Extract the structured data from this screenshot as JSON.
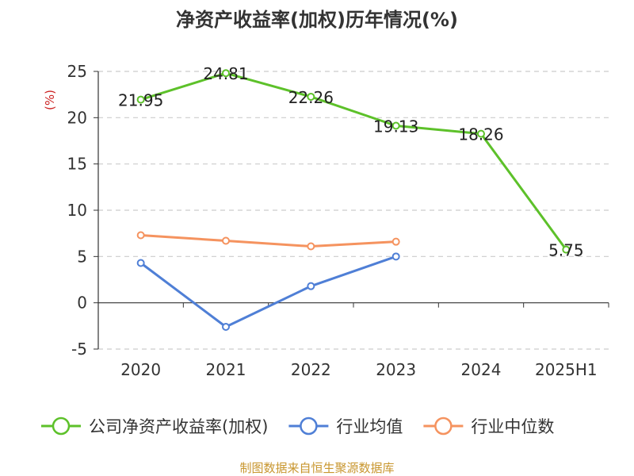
{
  "chart_data": {
    "type": "line",
    "title": "净资产收益率(加权)历年情况(%)",
    "ylabel": "(%)",
    "categories": [
      "2020",
      "2021",
      "2022",
      "2023",
      "2024",
      "2025H1"
    ],
    "ylim": [
      -5,
      25
    ],
    "yticks": [
      -5,
      0,
      5,
      10,
      15,
      20,
      25
    ],
    "grid": true,
    "legend_position": "bottom",
    "series": [
      {
        "name": "公司净资产收益率(加权)",
        "color": "#5dc12a",
        "values": [
          21.95,
          24.81,
          22.26,
          19.13,
          18.26,
          5.75
        ],
        "labels": [
          "21.95",
          "24.81",
          "22.26",
          "19.13",
          "18.26",
          "5.75"
        ]
      },
      {
        "name": "行业均值",
        "color": "#4f7fd6",
        "values": [
          4.3,
          -2.6,
          1.8,
          5.0,
          null,
          null
        ],
        "labels": []
      },
      {
        "name": "行业中位数",
        "color": "#f5935f",
        "values": [
          7.3,
          6.7,
          6.1,
          6.6,
          null,
          null
        ],
        "labels": []
      }
    ]
  },
  "source_text": "制图数据来自恒生聚源数据库",
  "colors": {
    "ylabel": "#cc2222",
    "source": "#c8962e",
    "axis": "#333333",
    "grid": "#cccccc"
  }
}
